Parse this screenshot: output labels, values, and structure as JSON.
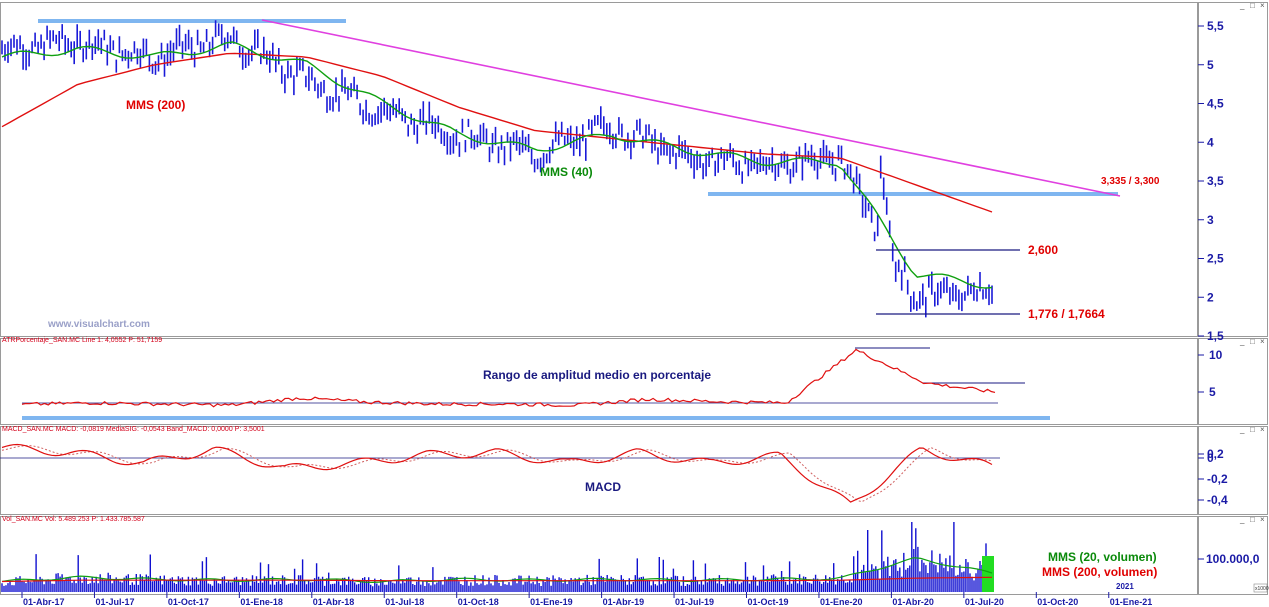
{
  "price_panel": {
    "header": "",
    "y_ticks": [
      "5,5",
      "5",
      "4,5",
      "4",
      "3,5",
      "3",
      "2,5",
      "2",
      "1,5"
    ],
    "annotations": {
      "mms200": "MMS (200)",
      "mms40": "MMS (40)",
      "resistance": "3,335 / 3,300",
      "level_high": "2,600",
      "level_low": "1,776 / 1,7664"
    },
    "watermark": "www.visualchart.com"
  },
  "atr_panel": {
    "header": "ATRPorcentaje_SAN.MC  Line 1: 4,0552  P: 51,7159",
    "title": "Rango de amplitud medio en porcentaje",
    "y_ticks": [
      "10",
      "5"
    ]
  },
  "macd_panel": {
    "header": "MACD_SAN.MC  MACD: -0,0819  MediaSIG: -0,0543  Band_MACD: 0,0000  P: 3,5001",
    "title": "MACD",
    "y_ticks": [
      "0,2",
      "0",
      "-0,2",
      "-0,4"
    ]
  },
  "volume_panel": {
    "header": "Vol_SAN.MC  Vol: 5.489.253  P: 1.433.785.587",
    "legend_short": "MMS (20, volumen)",
    "legend_long": "MMS (200, volumen)",
    "y_ticks": [
      "100.000,0"
    ],
    "corner_label": "x1000",
    "year_label": "2021"
  },
  "x_axis": {
    "labels": [
      "01-Abr-17",
      "01-Jul-17",
      "01-Oct-17",
      "01-Ene-18",
      "01-Abr-18",
      "01-Jul-18",
      "01-Oct-18",
      "01-Ene-19",
      "01-Abr-19",
      "01-Jul-19",
      "01-Oct-19",
      "01-Ene-20",
      "01-Abr-20",
      "01-Jul-20",
      "01-Oct-20",
      "01-Ene-21"
    ]
  },
  "window_buttons": {
    "minimize": "_",
    "maximize": "□",
    "close": "×"
  },
  "colors": {
    "price": "#1a1ad8",
    "mms200": "#e01010",
    "mms40": "#10a010",
    "trendline": "#e040e0",
    "support": "#7fb6f0",
    "axis_text": "#1a1aa6",
    "indicator": "#e01010"
  },
  "chart_data": [
    {
      "type": "line",
      "panel": "price",
      "x": [
        "01-Abr-17",
        "01-Jul-17",
        "01-Oct-17",
        "01-Ene-18",
        "01-Abr-18",
        "01-Jul-18",
        "01-Oct-18",
        "01-Ene-19",
        "01-Abr-19",
        "01-Jul-19",
        "01-Oct-19",
        "01-Ene-20",
        "01-Abr-20",
        "01-Jul-20"
      ],
      "series": [
        {
          "values": [
            5.2,
            5.3,
            5.1,
            5.35,
            4.8,
            4.4,
            4.1,
            3.85,
            4.2,
            3.8,
            3.7,
            3.8,
            2.0,
            2.1
          ]
        },
        {
          "name": "MMS (200)",
          "values": [
            4.2,
            4.75,
            5.0,
            5.15,
            5.1,
            4.85,
            4.45,
            4.15,
            4.05,
            3.95,
            3.85,
            3.8,
            3.45,
            3.1
          ]
        },
        {
          "name": "MMS (40)",
          "values": [
            5.1,
            5.2,
            5.1,
            5.25,
            5.0,
            4.5,
            4.1,
            3.9,
            4.1,
            3.9,
            3.75,
            3.75,
            2.3,
            2.15
          ]
        }
      ],
      "ylim": [
        1.5,
        5.7
      ]
    },
    {
      "type": "line",
      "panel": "atr",
      "title": "Rango de amplitud medio en porcentaje",
      "series": [
        {
          "values": [
            1.9,
            2.2,
            2.0,
            1.8,
            3.0,
            2.3,
            2.0,
            2.0,
            1.8,
            2.8,
            2.4,
            2.2,
            11.0,
            5.5,
            4.0
          ]
        }
      ],
      "ylim": [
        0,
        11
      ]
    },
    {
      "type": "line",
      "panel": "macd",
      "title": "MACD",
      "series": [
        {
          "values": [
            0.1,
            0.05,
            -0.05,
            0.08,
            -0.1,
            -0.05,
            0.03,
            0.05,
            -0.05,
            0.05,
            -0.05,
            0.02,
            -0.45,
            0.08,
            -0.08
          ]
        }
      ],
      "ylim": [
        -0.45,
        0.25
      ]
    },
    {
      "type": "bar",
      "panel": "volume",
      "series": [
        {
          "name": "MMS (20, volumen)",
          "values": [
            25000,
            35000,
            30000,
            28000,
            30000,
            25000,
            30000,
            28000,
            30000,
            28000,
            30000,
            32000,
            80000,
            45000
          ]
        },
        {
          "name": "MMS (200, volumen)",
          "values": [
            25000,
            28000,
            28000,
            28000,
            28000,
            27000,
            27000,
            27000,
            27000,
            27000,
            27000,
            28000,
            33000,
            35000
          ]
        }
      ],
      "ylim": [
        0,
        150000
      ]
    }
  ]
}
